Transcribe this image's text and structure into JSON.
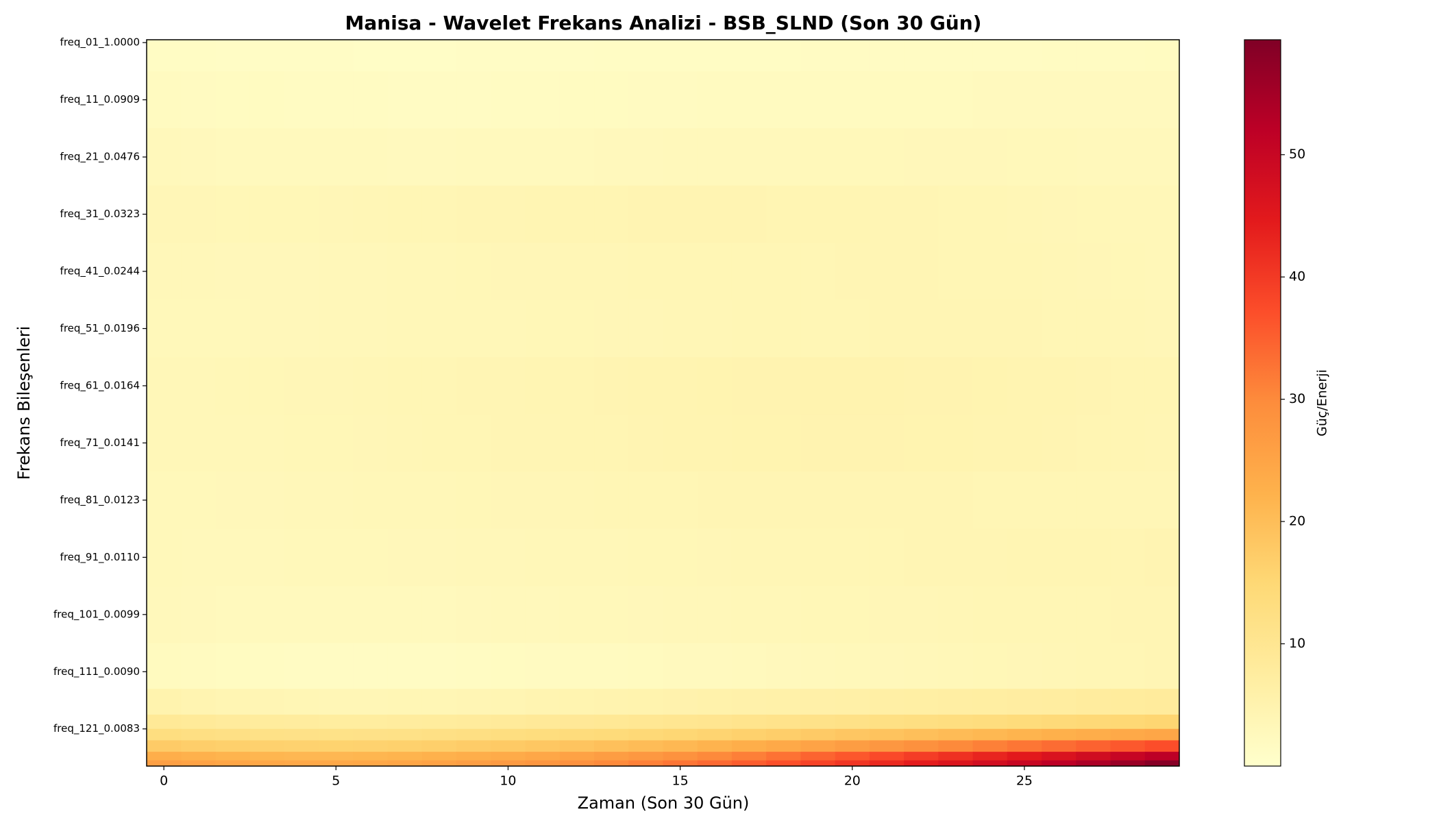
{
  "chart_data": {
    "type": "heatmap",
    "title": "Manisa - Wavelet Frekans Analizi - BSB_SLND (Son 30 Gün)",
    "xlabel": "Zaman (Son 30 Gün)",
    "ylabel": "Frekans Bileşenleri",
    "colorbar_label": "Güç/Enerji",
    "x": [
      0,
      1,
      2,
      3,
      4,
      5,
      6,
      7,
      8,
      9,
      10,
      11,
      12,
      13,
      14,
      15,
      16,
      17,
      18,
      19,
      20,
      21,
      22,
      23,
      24,
      25,
      26,
      27,
      28,
      29
    ],
    "y": [
      0,
      10,
      20,
      30,
      40,
      50,
      60,
      70,
      80,
      90,
      100,
      110,
      116,
      119,
      121,
      123,
      125,
      126
    ],
    "values": [
      [
        1.4,
        1.3,
        1.2,
        1.2,
        1.1,
        1.1,
        1.0,
        1.0,
        1.0,
        1.1,
        1.1,
        1.2,
        1.2,
        1.3,
        1.3,
        1.3,
        1.4,
        1.4,
        1.4,
        1.5,
        1.5,
        1.5,
        1.6,
        1.6,
        1.6,
        1.6,
        1.7,
        1.7,
        1.7,
        1.8
      ],
      [
        2.0,
        1.9,
        1.8,
        1.8,
        1.7,
        1.7,
        1.7,
        1.6,
        1.6,
        1.6,
        1.7,
        1.7,
        1.8,
        1.8,
        1.9,
        1.9,
        2.0,
        2.0,
        2.1,
        2.1,
        2.1,
        2.2,
        2.2,
        2.2,
        2.3,
        2.3,
        2.3,
        2.4,
        2.4,
        2.4
      ],
      [
        2.8,
        2.7,
        2.6,
        2.6,
        2.5,
        2.5,
        2.5,
        2.4,
        2.4,
        2.5,
        2.5,
        2.6,
        2.6,
        2.7,
        2.7,
        2.8,
        2.8,
        2.9,
        2.9,
        3.0,
        3.0,
        3.0,
        3.1,
        3.1,
        3.1,
        3.0,
        3.0,
        2.9,
        2.9,
        2.8
      ],
      [
        3.6,
        3.6,
        3.5,
        3.5,
        3.5,
        3.6,
        3.7,
        3.8,
        3.9,
        4.0,
        4.1,
        4.2,
        4.3,
        4.3,
        4.4,
        4.4,
        4.4,
        4.4,
        4.3,
        4.3,
        4.2,
        4.1,
        4.0,
        3.9,
        3.8,
        3.7,
        3.6,
        3.5,
        3.4,
        3.3
      ],
      [
        3.2,
        3.2,
        3.1,
        3.1,
        3.1,
        3.2,
        3.2,
        3.3,
        3.4,
        3.5,
        3.6,
        3.6,
        3.7,
        3.7,
        3.8,
        3.8,
        3.8,
        3.9,
        3.9,
        3.9,
        4.0,
        4.0,
        4.0,
        3.9,
        3.9,
        3.8,
        3.7,
        3.6,
        3.5,
        3.4
      ],
      [
        3.0,
        3.0,
        3.0,
        3.1,
        3.1,
        3.2,
        3.2,
        3.3,
        3.3,
        3.4,
        3.4,
        3.5,
        3.5,
        3.6,
        3.6,
        3.7,
        3.7,
        3.8,
        3.8,
        3.9,
        3.9,
        4.0,
        4.0,
        4.1,
        4.1,
        4.0,
        3.9,
        3.8,
        3.7,
        3.6
      ],
      [
        3.4,
        3.4,
        3.5,
        3.5,
        3.6,
        3.6,
        3.7,
        3.8,
        3.9,
        4.0,
        4.1,
        4.2,
        4.3,
        4.4,
        4.5,
        4.6,
        4.7,
        4.8,
        4.8,
        4.9,
        4.9,
        4.9,
        4.8,
        4.8,
        4.7,
        4.6,
        4.5,
        4.4,
        4.3,
        4.2
      ],
      [
        3.3,
        3.3,
        3.4,
        3.4,
        3.5,
        3.5,
        3.6,
        3.7,
        3.8,
        3.9,
        4.0,
        4.1,
        4.2,
        4.3,
        4.4,
        4.5,
        4.6,
        4.7,
        4.7,
        4.8,
        4.8,
        4.8,
        4.7,
        4.7,
        4.6,
        4.5,
        4.4,
        4.3,
        4.2,
        4.1
      ],
      [
        3.0,
        3.0,
        3.1,
        3.1,
        3.2,
        3.2,
        3.3,
        3.3,
        3.4,
        3.5,
        3.6,
        3.6,
        3.7,
        3.8,
        3.9,
        3.9,
        4.0,
        4.0,
        4.1,
        4.1,
        4.1,
        4.1,
        4.0,
        4.0,
        3.9,
        3.9,
        3.8,
        3.8,
        3.7,
        3.7
      ],
      [
        3.0,
        2.9,
        2.9,
        2.9,
        3.0,
        3.0,
        3.0,
        3.1,
        3.1,
        3.2,
        3.2,
        3.3,
        3.3,
        3.4,
        3.5,
        3.5,
        3.6,
        3.7,
        3.7,
        3.8,
        3.9,
        3.9,
        4.0,
        4.1,
        4.1,
        4.2,
        4.2,
        4.3,
        4.3,
        4.4
      ],
      [
        2.8,
        2.7,
        2.6,
        2.6,
        2.5,
        2.5,
        2.5,
        2.6,
        2.6,
        2.7,
        2.8,
        2.9,
        3.0,
        3.0,
        3.1,
        3.2,
        3.2,
        3.3,
        3.4,
        3.5,
        3.5,
        3.6,
        3.6,
        3.7,
        3.8,
        3.8,
        3.9,
        3.9,
        4.0,
        4.1
      ],
      [
        2.2,
        2.0,
        1.8,
        1.7,
        1.6,
        1.5,
        1.5,
        1.5,
        1.6,
        1.7,
        1.8,
        1.9,
        2.0,
        2.1,
        2.2,
        2.3,
        2.4,
        2.6,
        2.7,
        2.8,
        3.0,
        3.1,
        3.2,
        3.4,
        3.5,
        3.6,
        3.7,
        3.8,
        3.9,
        4.0
      ],
      [
        5.0,
        4.6,
        4.3,
        4.0,
        3.8,
        3.7,
        3.7,
        3.8,
        3.9,
        4.1,
        4.3,
        4.5,
        4.7,
        4.9,
        5.1,
        5.3,
        5.5,
        5.7,
        5.9,
        6.1,
        6.3,
        6.5,
        6.7,
        6.9,
        7.1,
        7.3,
        7.5,
        7.7,
        7.9,
        8.1
      ],
      [
        9.0,
        8.6,
        8.2,
        7.9,
        7.7,
        7.6,
        7.6,
        7.7,
        7.9,
        8.2,
        8.5,
        8.8,
        9.1,
        9.4,
        9.7,
        10.0,
        10.3,
        10.7,
        11.1,
        11.5,
        11.9,
        12.3,
        12.7,
        13.1,
        13.5,
        13.9,
        14.3,
        14.7,
        15.1,
        15.5
      ],
      [
        13.0,
        12.6,
        12.2,
        11.9,
        11.7,
        11.6,
        11.7,
        11.9,
        12.2,
        12.6,
        13.0,
        13.4,
        13.8,
        14.2,
        14.7,
        15.2,
        15.8,
        16.4,
        17.0,
        17.7,
        18.4,
        19.1,
        19.8,
        20.5,
        21.2,
        21.9,
        22.6,
        23.3,
        24.0,
        24.7
      ],
      [
        17.5,
        17.0,
        16.6,
        16.3,
        16.1,
        16.0,
        16.1,
        16.4,
        16.8,
        17.3,
        17.8,
        18.3,
        18.9,
        19.6,
        20.3,
        21.1,
        22.0,
        23.0,
        24.1,
        25.2,
        26.4,
        27.6,
        28.8,
        30.0,
        31.2,
        32.4,
        33.6,
        34.8,
        36.0,
        37.2
      ],
      [
        23.0,
        22.4,
        21.9,
        21.5,
        21.3,
        21.3,
        21.5,
        21.9,
        22.4,
        23.0,
        23.7,
        24.5,
        25.4,
        26.4,
        27.5,
        28.7,
        30.0,
        31.4,
        32.9,
        34.5,
        36.1,
        37.8,
        39.5,
        41.2,
        43.0,
        44.8,
        46.6,
        48.4,
        50.2,
        52.0
      ],
      [
        26.0,
        25.4,
        24.9,
        24.5,
        24.3,
        24.3,
        24.5,
        24.9,
        25.5,
        26.2,
        27.0,
        27.9,
        28.9,
        30.0,
        31.2,
        32.5,
        33.9,
        35.4,
        37.0,
        38.7,
        40.5,
        42.3,
        44.2,
        46.1,
        48.0,
        50.0,
        52.0,
        54.1,
        56.3,
        58.5
      ]
    ],
    "xlim": [
      -0.5,
      29.5
    ],
    "xticks": [
      0,
      5,
      10,
      15,
      20,
      25
    ],
    "ylim": [
      -0.5,
      126.5
    ],
    "yticks": [
      {
        "value": 0,
        "label": "freq_01_1.0000"
      },
      {
        "value": 10,
        "label": "freq_11_0.0909"
      },
      {
        "value": 20,
        "label": "freq_21_0.0476"
      },
      {
        "value": 30,
        "label": "freq_31_0.0323"
      },
      {
        "value": 40,
        "label": "freq_41_0.0244"
      },
      {
        "value": 50,
        "label": "freq_51_0.0196"
      },
      {
        "value": 60,
        "label": "freq_61_0.0164"
      },
      {
        "value": 70,
        "label": "freq_71_0.0141"
      },
      {
        "value": 80,
        "label": "freq_81_0.0123"
      },
      {
        "value": 90,
        "label": "freq_91_0.0110"
      },
      {
        "value": 100,
        "label": "freq_101_0.0099"
      },
      {
        "value": 110,
        "label": "freq_111_0.0090"
      },
      {
        "value": 120,
        "label": "freq_121_0.0083"
      }
    ],
    "clim": [
      0,
      59.4
    ],
    "cticks": [
      10,
      20,
      30,
      40,
      50
    ],
    "colormap": [
      "#ffffcc",
      "#ffeda0",
      "#fed976",
      "#feb24c",
      "#fd8d3c",
      "#fc4e2a",
      "#e31a1c",
      "#bd0026",
      "#800026"
    ]
  }
}
